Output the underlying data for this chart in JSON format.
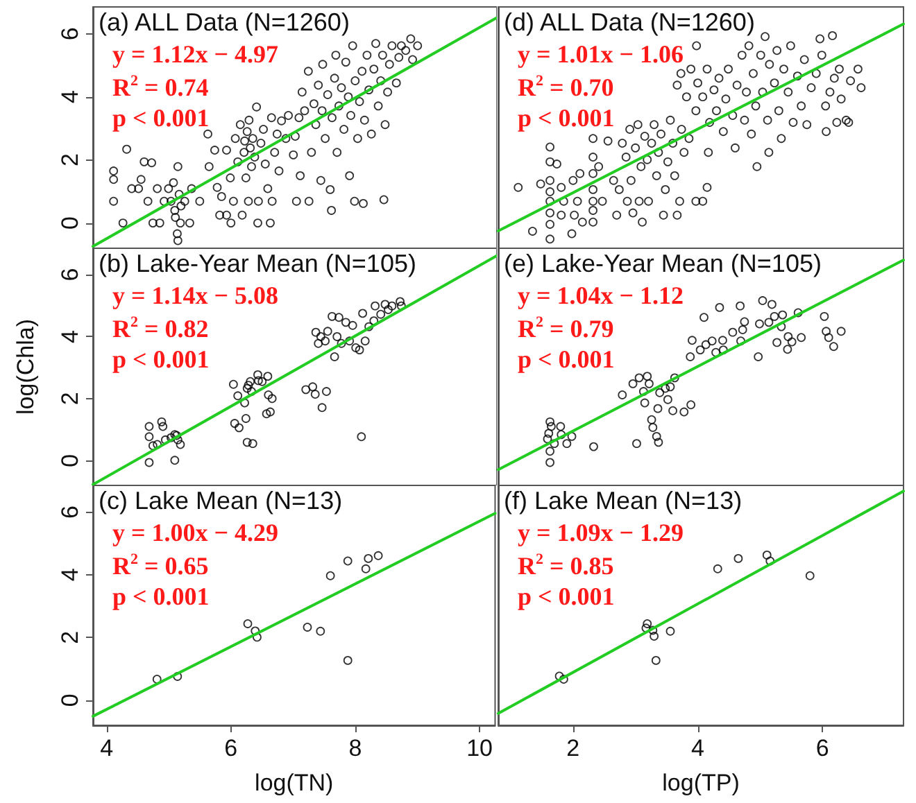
{
  "chart_data": [
    {
      "type": "scatter",
      "title": "(a) ALL Data (N=1260)",
      "annotations": [
        "y = 1.12x − 4.97",
        "R$^{2}$ = 0.74",
        "p < 0.001"
      ],
      "xlim": [
        3.78,
        10.25
      ],
      "ylim": [
        -0.8,
        6.85
      ],
      "xticks": [
        4,
        6,
        8,
        10
      ],
      "yticks": [
        0,
        2,
        4,
        6
      ],
      "tick_labels": "y",
      "marker": "circle",
      "series": [
        {
          "color": "#000000",
          "x": [
            4.11,
            4.11,
            4.11,
            4.26,
            4.32,
            4.4,
            4.51,
            4.55,
            4.6,
            4.72,
            4.66,
            4.74,
            4.81,
            4.85,
            4.92,
            4.99,
            5.03,
            5.07,
            5.09,
            5.1,
            5.13,
            5.14,
            5.14,
            5.16,
            5.18,
            5.19,
            5.25,
            5.33,
            5.36,
            5.49,
            5.62,
            5.64,
            5.73,
            5.77,
            5.81,
            5.84,
            5.92,
            5.92,
            5.98,
            5.99,
            6.03,
            6.06,
            6.1,
            6.14,
            6.17,
            6.2,
            6.21,
            6.23,
            6.25,
            6.27,
            6.28,
            6.3,
            6.32,
            6.34,
            6.37,
            6.4,
            6.42,
            6.43,
            6.47,
            6.51,
            6.54,
            6.58,
            6.62,
            6.64,
            6.65,
            6.69,
            6.73,
            6.76,
            6.8,
            6.87,
            6.91,
            6.99,
            7.02,
            7.04,
            7.08,
            7.1,
            7.13,
            7.17,
            7.23,
            7.24,
            7.28,
            7.32,
            7.35,
            7.39,
            7.43,
            7.45,
            7.46,
            7.5,
            7.54,
            7.58,
            7.6,
            7.61,
            7.65,
            7.67,
            7.69,
            7.72,
            7.76,
            7.8,
            7.83,
            7.87,
            7.89,
            7.91,
            7.94,
            7.97,
            7.98,
            8.02,
            8.05,
            8.09,
            8.11,
            8.13,
            8.17,
            8.2,
            8.24,
            8.28,
            8.31,
            8.35,
            8.39,
            8.42,
            8.44,
            8.46,
            8.5,
            8.53,
            8.57,
            8.64,
            8.68,
            8.72,
            8.79,
            8.87,
            8.9,
            8.98
          ],
          "values": [
            1.65,
            1.38,
            0.69,
            0.0,
            2.34,
            1.09,
            1.09,
            1.38,
            1.94,
            1.91,
            0.69,
            0.0,
            1.09,
            0.0,
            0.69,
            1.09,
            0.69,
            1.28,
            0.4,
            0.18,
            -0.34,
            1.79,
            -0.56,
            0.91,
            0.0,
            0.54,
            0.69,
            0.0,
            1.09,
            0.69,
            2.82,
            1.79,
            2.31,
            1.13,
            0.25,
            0.84,
            0.25,
            2.31,
            1.43,
            0.0,
            0.69,
            2.68,
            1.94,
            3.12,
            0.25,
            2.24,
            2.6,
            1.43,
            2.9,
            0.69,
            3.26,
            2.38,
            1.79,
            2.68,
            2.09,
            3.68,
            0.0,
            0.69,
            2.53,
            2.97,
            1.87,
            1.09,
            0.0,
            3.34,
            0.69,
            2.24,
            2.82,
            1.65,
            3.24,
            2.68,
            3.41,
            2.16,
            2.75,
            0.69,
            3.34,
            1.5,
            4.15,
            3.56,
            4.81,
            0.69,
            2.24,
            3.78,
            3.12,
            4.37,
            1.35,
            3.56,
            5.03,
            2.68,
            4.07,
            1.06,
            0.4,
            3.34,
            4.59,
            5.32,
            2.24,
            3.71,
            4.29,
            2.97,
            5.1,
            4.0,
            1.5,
            3.41,
            5.62,
            0.69,
            4.51,
            2.68,
            3.85,
            4.81,
            0.62,
            3.26,
            5.32,
            4.22,
            2.82,
            4.88,
            5.69,
            3.71,
            4.51,
            5.32,
            0.74,
            3.12,
            4.15,
            5.03,
            5.62,
            4.44,
            5.25,
            5.62,
            5.47,
            5.84,
            5.18,
            5.62
          ]
        },
        {
          "type": "line",
          "marker": "none",
          "color": "#22cc22",
          "x": [
            3.78,
            10.25
          ],
          "values": [
            -0.74,
            6.51
          ]
        }
      ]
    },
    {
      "type": "scatter",
      "title": "(d) ALL Data (N=1260)",
      "annotations": [
        "y = 1.01x − 1.06",
        "R$^{2}$ = 0.70",
        "p < 0.001"
      ],
      "xlim": [
        0.8,
        7.3
      ],
      "ylim": [
        -0.8,
        6.85
      ],
      "xticks": [
        2,
        4,
        6
      ],
      "yticks": [
        0,
        2,
        4,
        6
      ],
      "tick_labels": false,
      "marker": "circle",
      "series": [
        {
          "color": "#000000",
          "x": [
            1.12,
            1.35,
            1.48,
            1.63,
            1.63,
            1.63,
            1.63,
            1.63,
            1.63,
            1.63,
            1.63,
            1.74,
            1.81,
            1.81,
            1.85,
            1.98,
            2.0,
            2.02,
            2.07,
            2.11,
            2.15,
            2.32,
            2.32,
            2.32,
            2.32,
            2.32,
            2.32,
            2.32,
            2.41,
            2.47,
            2.56,
            2.65,
            2.7,
            2.74,
            2.79,
            2.85,
            2.87,
            2.91,
            2.93,
            2.96,
            3.0,
            3.04,
            3.06,
            3.09,
            3.11,
            3.15,
            3.19,
            3.21,
            3.26,
            3.3,
            3.34,
            3.37,
            3.41,
            3.45,
            3.48,
            3.52,
            3.56,
            3.6,
            3.63,
            3.67,
            3.71,
            3.74,
            3.78,
            3.86,
            3.97,
            4.08,
            4.15,
            4.17,
            3.67,
            3.73,
            3.82,
            3.89,
            3.97,
            4.0,
            3.98,
            4.08,
            4.15,
            4.19,
            4.26,
            4.3,
            4.34,
            4.41,
            4.45,
            4.49,
            4.56,
            4.6,
            4.63,
            4.71,
            4.75,
            4.78,
            4.82,
            4.86,
            4.89,
            4.93,
            4.95,
            5.01,
            5.04,
            5.08,
            5.12,
            5.14,
            5.15,
            5.23,
            5.27,
            5.3,
            5.34,
            5.38,
            5.45,
            5.49,
            5.53,
            5.6,
            5.66,
            5.71,
            5.75,
            5.82,
            5.9,
            5.96,
            5.99,
            6.05,
            6.06,
            6.12,
            6.16,
            6.19,
            6.23,
            6.27,
            6.3,
            6.38,
            6.42,
            6.45,
            6.57,
            6.62
          ],
          "values": [
            1.13,
            -0.26,
            1.24,
            2.41,
            1.94,
            1.35,
            0.99,
            0.69,
            0.32,
            -0.04,
            -0.51,
            1.87,
            1.13,
            0.25,
            0.69,
            -0.34,
            1.35,
            0.25,
            0.69,
            1.57,
            0.03,
            2.68,
            2.09,
            1.57,
            1.06,
            0.69,
            0.4,
            0.03,
            1.79,
            0.69,
            2.6,
            1.35,
            0.25,
            1.06,
            2.53,
            2.09,
            0.69,
            2.97,
            1.35,
            0.32,
            2.38,
            3.12,
            0.69,
            1.79,
            0.03,
            2.75,
            2.01,
            0.69,
            2.53,
            3.12,
            1.5,
            2.24,
            2.82,
            0.25,
            1.06,
            1.94,
            3.26,
            2.53,
            1.5,
            0.25,
            0.69,
            2.97,
            2.24,
            2.68,
            0.69,
            0.69,
            1.13,
            2.24,
            4.37,
            4.74,
            4.0,
            4.88,
            3.56,
            4.44,
            5.62,
            4.0,
            4.88,
            3.19,
            4.22,
            3.56,
            4.59,
            2.9,
            3.93,
            4.88,
            3.41,
            2.38,
            4.37,
            5.32,
            3.26,
            4.15,
            5.62,
            2.82,
            4.74,
            3.71,
            1.79,
            5.32,
            4.15,
            5.91,
            3.26,
            2.24,
            5.03,
            4.44,
            5.47,
            3.56,
            2.68,
            4.88,
            4.15,
            5.62,
            3.19,
            4.66,
            3.71,
            5.18,
            3.12,
            4.29,
            4.74,
            5.84,
            5.32,
            3.71,
            2.9,
            4.15,
            5.94,
            4.59,
            3.19,
            4.88,
            3.93,
            3.26,
            3.19,
            4.51,
            4.88,
            4.29
          ]
        },
        {
          "type": "line",
          "marker": "none",
          "color": "#22cc22",
          "x": [
            0.8,
            7.3
          ],
          "values": [
            -0.25,
            6.31
          ]
        }
      ]
    },
    {
      "type": "scatter",
      "title": "(b) Lake-Year Mean (N=105)",
      "ylabel": "log(Chla)",
      "annotations": [
        "y = 1.14x − 5.08",
        "R$^{2}$ = 0.82",
        "p < 0.001"
      ],
      "xlim": [
        3.78,
        10.25
      ],
      "ylim": [
        -0.8,
        6.85
      ],
      "xticks": [
        4,
        6,
        8,
        10
      ],
      "yticks": [
        0,
        2,
        4,
        6
      ],
      "tick_labels": "y",
      "marker": "circle",
      "series": [
        {
          "color": "#000000",
          "x": [
            4.68,
            4.68,
            4.68,
            4.74,
            4.81,
            4.88,
            4.9,
            4.94,
            5.03,
            5.09,
            5.14,
            5.18,
            5.09,
            5.12,
            6.03,
            6.05,
            6.1,
            6.12,
            6.21,
            6.23,
            6.25,
            6.27,
            6.3,
            6.32,
            6.25,
            6.34,
            6.42,
            6.43,
            6.49,
            6.58,
            6.59,
            6.65,
            6.62,
            6.56,
            7.19,
            7.3,
            7.34,
            7.45,
            7.52,
            8.08,
            7.35,
            7.39,
            7.43,
            7.5,
            7.54,
            7.61,
            7.65,
            7.69,
            7.72,
            7.76,
            7.83,
            7.89,
            7.94,
            7.99,
            8.05,
            8.1,
            8.14,
            8.2,
            8.28,
            8.3,
            8.39,
            8.46,
            8.51,
            8.57,
            8.7,
            8.72
          ],
          "values": [
            1.1,
            0.77,
            -0.06,
            0.48,
            0.52,
            1.25,
            1.1,
            0.67,
            0.74,
            0.84,
            0.67,
            0.52,
            0.01,
            0.81,
            2.46,
            1.2,
            2.09,
            1.06,
            1.86,
            1.36,
            2.33,
            2.43,
            2.55,
            2.23,
            0.59,
            0.55,
            2.77,
            2.58,
            2.55,
            2.72,
            2.12,
            2.0,
            1.57,
            1.51,
            2.29,
            2.38,
            2.14,
            1.71,
            2.23,
            0.77,
            4.14,
            3.78,
            4.0,
            3.86,
            4.17,
            4.65,
            3.35,
            4.0,
            4.62,
            3.78,
            4.46,
            3.86,
            4.36,
            3.64,
            3.57,
            4.75,
            3.86,
            4.32,
            4.51,
            4.99,
            4.72,
            5.04,
            4.87,
            4.99,
            5.13,
            4.99
          ]
        },
        {
          "type": "line",
          "marker": "none",
          "color": "#22cc22",
          "x": [
            3.78,
            10.25
          ],
          "values": [
            -0.77,
            6.61
          ]
        }
      ]
    },
    {
      "type": "scatter",
      "title": "(e) Lake-Year Mean (N=105)",
      "annotations": [
        "y = 1.04x − 1.12",
        "R$^{2}$ = 0.79",
        "p < 0.001"
      ],
      "xlim": [
        0.8,
        7.3
      ],
      "ylim": [
        -0.8,
        6.85
      ],
      "xticks": [
        2,
        4,
        6
      ],
      "yticks": [
        0,
        2,
        4,
        6
      ],
      "tick_labels": false,
      "marker": "circle",
      "series": [
        {
          "color": "#000000",
          "x": [
            1.59,
            1.61,
            1.63,
            1.65,
            1.63,
            1.63,
            1.7,
            1.8,
            1.81,
            1.9,
            1.98,
            2.33,
            2.79,
            2.96,
            3.02,
            3.06,
            3.13,
            3.15,
            3.19,
            3.22,
            3.26,
            3.28,
            3.34,
            3.37,
            3.36,
            3.39,
            3.48,
            3.52,
            3.56,
            3.63,
            3.6,
            3.78,
            3.89,
            3.88,
            3.91,
            4.04,
            4.1,
            4.13,
            4.23,
            4.29,
            4.35,
            4.4,
            4.41,
            4.56,
            4.68,
            4.69,
            4.72,
            4.75,
            4.97,
            4.99,
            5.04,
            5.14,
            5.19,
            5.23,
            5.27,
            5.34,
            5.36,
            5.44,
            5.45,
            5.51,
            5.61,
            5.66,
            6.03,
            6.06,
            6.1,
            6.18,
            6.3
          ],
          "values": [
            0.7,
            0.88,
            1.25,
            1.1,
            0.3,
            -0.06,
            0.55,
            1.1,
            0.84,
            0.55,
            0.78,
            0.45,
            2.12,
            2.48,
            0.55,
            2.67,
            2.23,
            1.86,
            2.72,
            2.48,
            1.32,
            1.07,
            0.78,
            0.59,
            1.68,
            2.19,
            2.33,
            1.97,
            2.38,
            2.67,
            1.61,
            1.57,
            1.8,
            3.35,
            3.88,
            3.57,
            4.62,
            3.74,
            3.86,
            3.49,
            4.94,
            3.88,
            3.57,
            4.14,
            4.99,
            3.86,
            4.22,
            4.48,
            3.35,
            4.41,
            5.16,
            4.46,
            5.04,
            4.65,
            3.81,
            4.32,
            4.7,
            3.59,
            4.0,
            3.83,
            4.77,
            3.97,
            4.65,
            4.17,
            3.97,
            3.68,
            4.17
          ]
        },
        {
          "type": "line",
          "marker": "none",
          "color": "#22cc22",
          "x": [
            0.8,
            7.3
          ],
          "values": [
            -0.29,
            6.47
          ]
        }
      ]
    },
    {
      "type": "scatter",
      "title": "(c) Lake Mean (N=13)",
      "xlabel": "log(TN)",
      "annotations": [
        "y = 1.00x − 4.29",
        "R$^{2}$ = 0.65",
        "p < 0.001"
      ],
      "xlim": [
        3.78,
        10.25
      ],
      "ylim": [
        -0.8,
        6.85
      ],
      "xticks": [
        4,
        6,
        8,
        10
      ],
      "yticks": [
        0,
        2,
        4,
        6
      ],
      "marker": "circle",
      "series": [
        {
          "color": "#000000",
          "x": [
            4.81,
            5.14,
            6.27,
            6.39,
            6.42,
            7.23,
            7.44,
            7.6,
            7.88,
            7.88,
            8.17,
            8.21,
            8.37
          ],
          "values": [
            0.67,
            0.76,
            2.44,
            2.21,
            2.01,
            2.33,
            2.2,
            3.97,
            4.44,
            1.27,
            4.19,
            4.52,
            4.61
          ]
        },
        {
          "type": "line",
          "marker": "none",
          "color": "#22cc22",
          "x": [
            3.78,
            10.25
          ],
          "values": [
            -0.51,
            5.96
          ]
        }
      ]
    },
    {
      "type": "scatter",
      "title": "(f) Lake Mean (N=13)",
      "xlabel": "log(TP)",
      "annotations": [
        "y = 1.09x − 1.29",
        "R$^{2}$ = 0.85",
        "p < 0.001"
      ],
      "xlim": [
        0.8,
        7.3
      ],
      "ylim": [
        -0.8,
        6.85
      ],
      "xticks": [
        2,
        4,
        6
      ],
      "yticks": [
        0,
        2,
        4,
        6
      ],
      "tick_labels": "x",
      "marker": "circle",
      "series": [
        {
          "color": "#000000",
          "x": [
            1.78,
            1.85,
            3.19,
            3.17,
            3.3,
            3.28,
            3.56,
            3.33,
            4.32,
            4.65,
            5.11,
            5.16,
            5.8
          ],
          "values": [
            0.77,
            0.67,
            2.44,
            2.3,
            2.04,
            2.23,
            2.2,
            1.27,
            4.19,
            4.52,
            4.63,
            4.44,
            3.97
          ]
        },
        {
          "type": "line",
          "marker": "none",
          "color": "#22cc22",
          "x": [
            0.8,
            7.3
          ],
          "values": [
            -0.42,
            6.67
          ]
        }
      ]
    }
  ]
}
